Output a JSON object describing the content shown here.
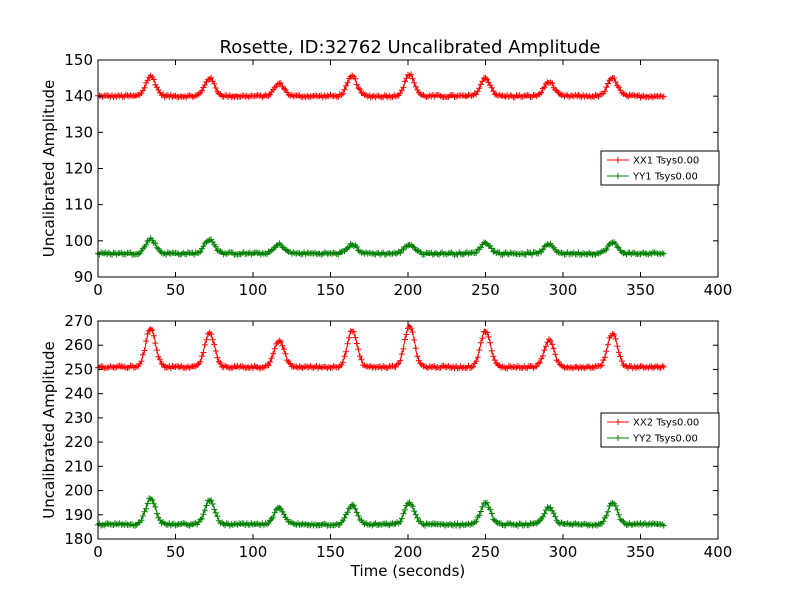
{
  "figure_title": "Rosette, ID:32762 Uncalibrated Amplitude",
  "colors": {
    "xx": "#ff0000",
    "yy": "#008000",
    "axes": "#000000",
    "background": "#ffffff"
  },
  "chart_data": [
    {
      "type": "line",
      "marker": "plus",
      "title": "Rosette, ID:32762 Uncalibrated Amplitude",
      "xlabel": "",
      "ylabel": "Uncalibrated Amplitude",
      "xlim": [
        0,
        400
      ],
      "ylim": [
        90,
        150
      ],
      "xticks": [
        "0",
        "50",
        "100",
        "150",
        "200",
        "250",
        "300",
        "350",
        "400"
      ],
      "yticks": [
        "90",
        "100",
        "110",
        "120",
        "130",
        "140",
        "150"
      ],
      "grid": false,
      "legend_position": "right",
      "series": [
        {
          "name": "XX1 Tsys0.00",
          "color": "#ff0000",
          "x_range": [
            0,
            365
          ],
          "baseline": 140,
          "peaks": [
            [
              34,
              145.5
            ],
            [
              72,
              145
            ],
            [
              117,
              143.5
            ],
            [
              164,
              145.5
            ],
            [
              201,
              146
            ],
            [
              250,
              145
            ],
            [
              291,
              144
            ],
            [
              332,
              145
            ]
          ]
        },
        {
          "name": "YY1 Tsys0.00",
          "color": "#008000",
          "x_range": [
            0,
            365
          ],
          "baseline": 96.5,
          "peaks": [
            [
              34,
              100.5
            ],
            [
              72,
              100.5
            ],
            [
              117,
              99
            ],
            [
              164,
              99
            ],
            [
              201,
              99
            ],
            [
              250,
              99.5
            ],
            [
              291,
              99
            ],
            [
              332,
              99.5
            ]
          ]
        }
      ]
    },
    {
      "type": "line",
      "marker": "plus",
      "title": "",
      "xlabel": "Time (seconds)",
      "ylabel": "Uncalibrated Amplitude",
      "xlim": [
        0,
        400
      ],
      "ylim": [
        180,
        270
      ],
      "xticks": [
        "0",
        "50",
        "100",
        "150",
        "200",
        "250",
        "300",
        "350",
        "400"
      ],
      "yticks": [
        "180",
        "190",
        "200",
        "210",
        "220",
        "230",
        "240",
        "250",
        "260",
        "270"
      ],
      "grid": false,
      "legend_position": "right",
      "series": [
        {
          "name": "XX2 Tsys0.00",
          "color": "#ff0000",
          "x_range": [
            0,
            365
          ],
          "baseline": 251,
          "peaks": [
            [
              34,
              267
            ],
            [
              72,
              265
            ],
            [
              117,
              262
            ],
            [
              164,
              266
            ],
            [
              201,
              268
            ],
            [
              250,
              266
            ],
            [
              291,
              262
            ],
            [
              332,
              265
            ]
          ]
        },
        {
          "name": "YY2 Tsys0.00",
          "color": "#008000",
          "x_range": [
            0,
            365
          ],
          "baseline": 186,
          "peaks": [
            [
              34,
              197
            ],
            [
              72,
              196
            ],
            [
              117,
              193
            ],
            [
              164,
              194
            ],
            [
              201,
              195
            ],
            [
              250,
              195
            ],
            [
              291,
              193
            ],
            [
              332,
              195
            ]
          ]
        }
      ]
    }
  ]
}
